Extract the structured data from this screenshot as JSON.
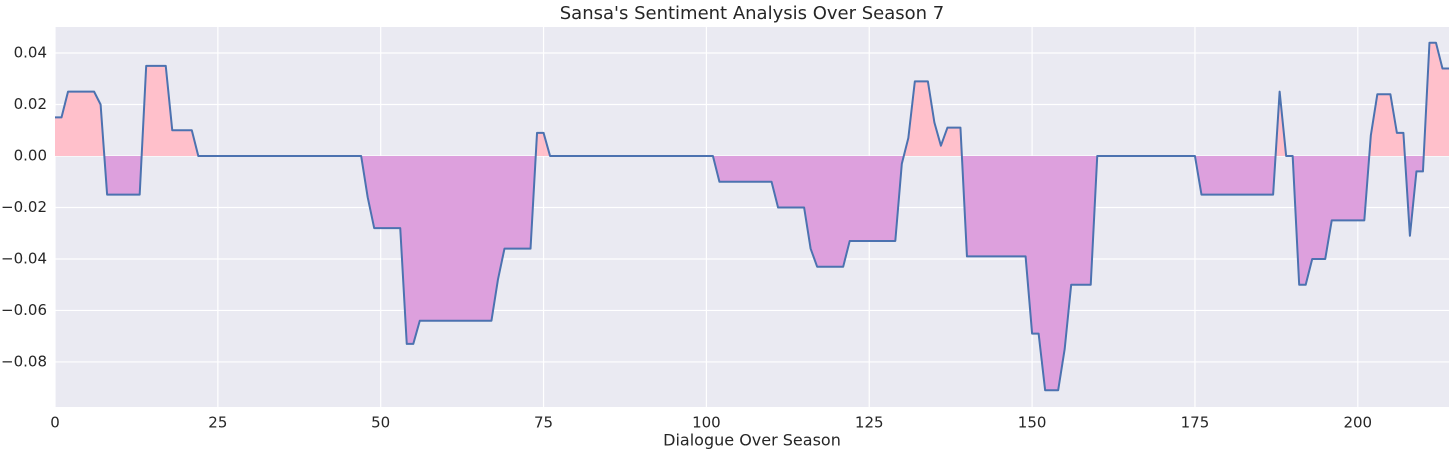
{
  "chart_data": {
    "type": "area-line",
    "title": "Sansa's Sentiment Analysis Over Season 7",
    "x_label": "Dialogue Over Season",
    "line_color": "#4c72b0",
    "positive_color": "#ffc0cb",
    "negative_color": "#dda0dd",
    "grid": true,
    "xlim": [
      0,
      214
    ],
    "xticks": [
      0,
      25,
      50,
      75,
      100,
      125,
      150,
      175,
      200
    ],
    "ylim": [
      -0.0975,
      0.0501
    ],
    "yticks": [
      {
        "value": -0.08,
        "label": "−0.08"
      },
      {
        "value": -0.06,
        "label": "−0.06"
      },
      {
        "value": -0.04,
        "label": "−0.04"
      },
      {
        "value": -0.02,
        "label": "−0.02"
      },
      {
        "value": 0,
        "label": "0.00"
      },
      {
        "value": 0.02,
        "label": "0.02"
      },
      {
        "value": 0.04,
        "label": "0.04"
      }
    ],
    "values": [
      0.015,
      0.015,
      0.025,
      0.025,
      0.025,
      0.025,
      0.025,
      0.02,
      -0.015,
      -0.015,
      -0.015,
      -0.015,
      -0.015,
      -0.015,
      0.035,
      0.035,
      0.035,
      0.035,
      0.01,
      0.01,
      0.01,
      0.01,
      0,
      0,
      0,
      0,
      0,
      0,
      0,
      0,
      0,
      0,
      0,
      0,
      0,
      0,
      0,
      0,
      0,
      0,
      0,
      0,
      0,
      0,
      0,
      0,
      0,
      0,
      -0.016,
      -0.028,
      -0.028,
      -0.028,
      -0.028,
      -0.028,
      -0.073,
      -0.073,
      -0.064,
      -0.064,
      -0.064,
      -0.064,
      -0.064,
      -0.064,
      -0.064,
      -0.064,
      -0.064,
      -0.064,
      -0.064,
      -0.064,
      -0.048,
      -0.036,
      -0.036,
      -0.036,
      -0.036,
      -0.036,
      0.009,
      0.009,
      0,
      0,
      0,
      0,
      0,
      0,
      0,
      0,
      0,
      0,
      0,
      0,
      0,
      0,
      0,
      0,
      0,
      0,
      0,
      0,
      0,
      0,
      0,
      0,
      0,
      0,
      -0.01,
      -0.01,
      -0.01,
      -0.01,
      -0.01,
      -0.01,
      -0.01,
      -0.01,
      -0.01,
      -0.02,
      -0.02,
      -0.02,
      -0.02,
      -0.02,
      -0.036,
      -0.043,
      -0.043,
      -0.043,
      -0.043,
      -0.043,
      -0.033,
      -0.033,
      -0.033,
      -0.033,
      -0.033,
      -0.033,
      -0.033,
      -0.033,
      -0.003,
      0.007,
      0.029,
      0.029,
      0.029,
      0.013,
      0.004,
      0.011,
      0.011,
      0.011,
      -0.039,
      -0.039,
      -0.039,
      -0.039,
      -0.039,
      -0.039,
      -0.039,
      -0.039,
      -0.039,
      -0.039,
      -0.069,
      -0.069,
      -0.091,
      -0.091,
      -0.091,
      -0.075,
      -0.05,
      -0.05,
      -0.05,
      -0.05,
      0,
      0,
      0,
      0,
      0,
      0,
      0,
      0,
      0,
      0,
      0,
      0,
      0,
      0,
      0,
      0,
      -0.015,
      -0.015,
      -0.015,
      -0.015,
      -0.015,
      -0.015,
      -0.015,
      -0.015,
      -0.015,
      -0.015,
      -0.015,
      -0.015,
      0.025,
      0,
      0,
      -0.05,
      -0.05,
      -0.04,
      -0.04,
      -0.04,
      -0.025,
      -0.025,
      -0.025,
      -0.025,
      -0.025,
      -0.025,
      0.008,
      0.024,
      0.024,
      0.024,
      0.009,
      0.009,
      -0.031,
      -0.006,
      -0.006,
      0.044,
      0.044,
      0.034,
      0.034
    ]
  }
}
